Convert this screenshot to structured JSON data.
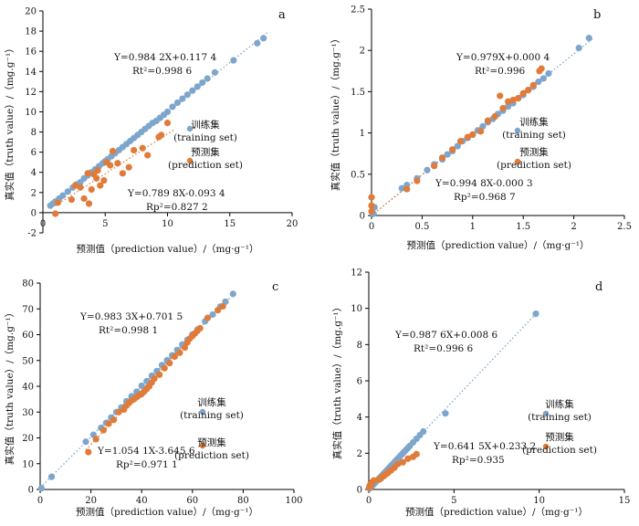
{
  "colors": {
    "training": "#7ea6cc",
    "prediction": "#e07b39",
    "axis": "#000000"
  },
  "chart_data": [
    {
      "panel": "a",
      "type": "scatter",
      "xlabel": "预测值（prediction value）/（mg·g⁻¹）",
      "ylabel": "真实值（truth value）/（mg.g⁻¹）",
      "xlim": [
        0,
        20
      ],
      "ylim": [
        -2,
        20
      ],
      "xticks": [
        0,
        5,
        10,
        15,
        20
      ],
      "yticks": [
        -2,
        0,
        2,
        4,
        6,
        8,
        10,
        12,
        14,
        16,
        18,
        20
      ],
      "eq_train_1": "Y=0.984 2X+0.117 4",
      "eq_train_2": "Rt²=0.998 6",
      "eq_pred_1": "Y=0.789 8X-0.093 4",
      "eq_pred_2": "Rp²=0.827 2",
      "legend_train_1": "训练集",
      "legend_train_2": "(training set)",
      "legend_pred_1": "预测集",
      "legend_pred_2": "(prediction set)",
      "fit_train": {
        "slope": 0.9842,
        "intercept": 0.1174,
        "x_range": [
          0.5,
          18
        ]
      },
      "fit_pred": {
        "slope": 0.7898,
        "intercept": -0.0934,
        "x_range": [
          1,
          10.5
        ]
      },
      "series": [
        {
          "name": "训练集 (training set)",
          "x": [
            0.6,
            0.8,
            1.0,
            1.3,
            1.6,
            2.0,
            2.4,
            2.7,
            3.0,
            3.3,
            3.6,
            3.9,
            4.2,
            4.5,
            4.8,
            5.0,
            5.2,
            5.5,
            5.8,
            6.1,
            6.4,
            6.7,
            7.0,
            7.3,
            7.6,
            7.9,
            8.2,
            8.5,
            8.8,
            9.1,
            9.4,
            9.7,
            10.0,
            10.4,
            10.8,
            11.2,
            11.6,
            12.0,
            12.4,
            12.8,
            13.2,
            13.8,
            15.3,
            17.2,
            17.7
          ],
          "y": [
            0.7,
            0.9,
            1.1,
            1.4,
            1.7,
            2.1,
            2.5,
            2.8,
            3.0,
            3.4,
            3.7,
            4.0,
            4.3,
            4.6,
            4.9,
            5.1,
            5.3,
            5.6,
            5.9,
            6.2,
            6.5,
            6.8,
            7.1,
            7.4,
            7.7,
            8.0,
            8.3,
            8.6,
            8.9,
            9.1,
            9.4,
            9.7,
            10.0,
            10.5,
            10.9,
            11.3,
            11.7,
            12.1,
            12.5,
            12.9,
            13.3,
            13.9,
            15.1,
            16.8,
            17.3
          ]
        },
        {
          "name": "预测集 (prediction set)",
          "x": [
            1.0,
            1.2,
            2.3,
            2.6,
            3.0,
            3.3,
            3.6,
            3.7,
            3.9,
            4.1,
            4.3,
            4.4,
            4.6,
            4.9,
            5.1,
            5.4,
            5.6,
            6.0,
            6.4,
            6.9,
            7.3,
            8.0,
            8.4,
            9.3,
            9.5,
            10.0
          ],
          "y": [
            -0.1,
            1.0,
            1.3,
            2.7,
            2.5,
            1.4,
            3.9,
            0.9,
            2.3,
            3.8,
            3.4,
            4.2,
            2.7,
            3.2,
            5.0,
            4.7,
            6.1,
            4.9,
            3.9,
            4.5,
            6.2,
            6.4,
            5.7,
            7.5,
            7.7,
            8.9
          ]
        }
      ]
    },
    {
      "panel": "b",
      "type": "scatter",
      "xlabel": "预测值（prediction value）/（mg·g⁻¹）",
      "ylabel": "真实值（truth value）/（mg.g⁻¹）",
      "xlim": [
        0,
        2.5
      ],
      "ylim": [
        0,
        2.5
      ],
      "xticks": [
        0,
        0.5,
        1,
        1.5,
        2,
        2.5
      ],
      "yticks": [
        0,
        0.5,
        1,
        1.5,
        2,
        2.5
      ],
      "eq_train_1": "Y=0.979X+0.000 4",
      "eq_train_2": "Rt²=0.996",
      "eq_pred_1": "Y=0.994 8X-0.000 3",
      "eq_pred_2": "Rp²=0.968 7",
      "legend_train_1": "训练集",
      "legend_train_2": "(training set)",
      "legend_pred_1": "预测集",
      "legend_pred_2": "(prediction set)",
      "fit_train": {
        "slope": 0.979,
        "intercept": 0.0004,
        "x_range": [
          0,
          2.2
        ]
      },
      "fit_pred": {
        "slope": 0.9948,
        "intercept": -0.0003,
        "x_range": [
          0,
          1.7
        ]
      },
      "series": [
        {
          "name": "训练集 (training set)",
          "x": [
            0.02,
            0.03,
            0.3,
            0.35,
            0.45,
            0.55,
            0.62,
            0.7,
            0.75,
            0.8,
            0.85,
            0.9,
            0.95,
            1.0,
            1.05,
            1.1,
            1.15,
            1.2,
            1.25,
            1.3,
            1.35,
            1.4,
            1.45,
            1.5,
            1.55,
            1.6,
            1.65,
            1.7,
            1.75,
            2.05,
            2.15
          ],
          "y": [
            0.02,
            0.1,
            0.33,
            0.37,
            0.45,
            0.55,
            0.62,
            0.68,
            0.74,
            0.78,
            0.84,
            0.9,
            0.94,
            0.98,
            1.03,
            1.08,
            1.13,
            1.17,
            1.23,
            1.27,
            1.32,
            1.36,
            1.42,
            1.46,
            1.52,
            1.56,
            1.62,
            1.66,
            1.72,
            2.03,
            2.15
          ]
        },
        {
          "name": "预测集 (prediction set)",
          "x": [
            0.0,
            0.0,
            0.0,
            0.35,
            0.45,
            0.62,
            0.7,
            0.8,
            0.88,
            0.95,
            1.0,
            1.08,
            1.15,
            1.22,
            1.27,
            1.3,
            1.35,
            1.4,
            1.45,
            1.5,
            1.55,
            1.6,
            1.66,
            1.68
          ],
          "y": [
            0.05,
            0.12,
            0.22,
            0.32,
            0.42,
            0.6,
            0.7,
            0.8,
            0.9,
            0.95,
            0.98,
            1.02,
            1.15,
            1.2,
            1.45,
            1.3,
            1.38,
            1.4,
            1.42,
            1.48,
            1.52,
            1.58,
            1.75,
            1.78
          ]
        }
      ]
    },
    {
      "panel": "c",
      "type": "scatter",
      "xlabel": "预测值（prediction value）/（mg·g⁻¹）",
      "ylabel": "真实值（truth value）/（mg.g⁻¹）",
      "xlim": [
        0,
        100
      ],
      "ylim": [
        0,
        80
      ],
      "xticks": [
        0,
        20,
        40,
        60,
        80,
        100
      ],
      "yticks": [
        0,
        10,
        20,
        30,
        40,
        50,
        60,
        70,
        80
      ],
      "eq_train_1": "Y=0.983 3X+0.701 5",
      "eq_train_2": "Rt²=0.998 1",
      "eq_pred_1": "Y=1.054 1X-3.645 6",
      "eq_pred_2": "Rp²=0.971 1",
      "legend_train_1": "训练集",
      "legend_train_2": "(training set)",
      "legend_pred_1": "预测集",
      "legend_pred_2": "(prediction set)",
      "fit_train": {
        "slope": 0.9833,
        "intercept": 0.7015,
        "x_range": [
          0,
          77
        ]
      },
      "fit_pred": {
        "slope": 1.0541,
        "intercept": -3.6456,
        "x_range": [
          18,
          74
        ]
      },
      "series": [
        {
          "name": "训练集 (training set)",
          "x": [
            0.5,
            4.5,
            18,
            21,
            24,
            26,
            28,
            30,
            32,
            34,
            36,
            38,
            40,
            42,
            44,
            46,
            48,
            50,
            52,
            54,
            56,
            58,
            60,
            62,
            65,
            68,
            71,
            73,
            76
          ],
          "y": [
            0.5,
            4.9,
            18.5,
            21.2,
            23.9,
            25.8,
            27.9,
            30.0,
            31.8,
            34.2,
            36.1,
            37.9,
            40.2,
            42.0,
            44.1,
            45.9,
            48.2,
            50.1,
            52.0,
            54.1,
            56.2,
            58.0,
            60.1,
            62.0,
            65.2,
            67.8,
            70.9,
            72.8,
            75.8
          ]
        },
        {
          "name": "预测集 (prediction set)",
          "x": [
            19,
            22,
            25,
            27,
            29,
            31,
            33,
            34,
            35,
            36,
            37,
            38,
            39,
            40,
            41,
            42,
            43,
            44,
            45,
            47,
            49,
            51,
            53,
            55,
            57,
            58,
            59,
            60,
            61,
            62,
            63,
            66,
            70,
            72
          ],
          "y": [
            14.5,
            19.5,
            23.0,
            25.5,
            27.0,
            30.0,
            31.0,
            32.5,
            33.5,
            34.5,
            35.0,
            35.8,
            36.5,
            37.0,
            38.0,
            39.0,
            40.0,
            41.5,
            43.0,
            44.5,
            47.0,
            49.0,
            51.5,
            53.0,
            55.0,
            57.0,
            58.5,
            59.5,
            60.5,
            61.5,
            62.5,
            66.5,
            69.5,
            71.0
          ]
        }
      ]
    },
    {
      "panel": "d",
      "type": "scatter",
      "xlabel": "预测值（prediction value）/（mg·g⁻¹）",
      "ylabel": "真实值（truth value）/（mg.g⁻¹）",
      "xlim": [
        0,
        15
      ],
      "ylim": [
        0,
        12
      ],
      "xticks": [
        0,
        5,
        10,
        15
      ],
      "yticks": [
        0,
        2,
        4,
        6,
        8,
        10,
        12
      ],
      "eq_train_1": "Y=0.987 6X+0.008 6",
      "eq_train_2": "Rt²=0.996 6",
      "eq_pred_1": "Y=0.641 5X+0.233 2",
      "eq_pred_2": "Rp²=0.935",
      "legend_train_1": "训练集",
      "legend_train_2": "(training set)",
      "legend_pred_1": "预测集",
      "legend_pred_2": "(prediction set)",
      "fit_train": {
        "slope": 0.9876,
        "intercept": 0.0086,
        "x_range": [
          0,
          10
        ]
      },
      "fit_pred": {
        "slope": 0.6415,
        "intercept": 0.2332,
        "x_range": [
          0,
          3
        ]
      },
      "series": [
        {
          "name": "训练集 (training set)",
          "x": [
            0.05,
            0.1,
            0.2,
            0.3,
            0.4,
            0.5,
            0.6,
            0.7,
            0.8,
            0.9,
            1.0,
            1.1,
            1.2,
            1.3,
            1.4,
            1.5,
            1.6,
            1.7,
            1.8,
            1.9,
            2.0,
            2.1,
            2.2,
            2.3,
            2.4,
            2.6,
            2.8,
            3.0,
            3.2,
            4.5,
            9.8
          ],
          "y": [
            0.05,
            0.12,
            0.2,
            0.3,
            0.4,
            0.5,
            0.6,
            0.7,
            0.8,
            0.9,
            1.0,
            1.1,
            1.2,
            1.3,
            1.4,
            1.5,
            1.6,
            1.7,
            1.8,
            1.9,
            2.0,
            2.1,
            2.2,
            2.3,
            2.4,
            2.6,
            2.8,
            3.0,
            3.2,
            4.2,
            9.7
          ]
        },
        {
          "name": "预测集 (prediction set)",
          "x": [
            0.02,
            0.05,
            0.1,
            0.15,
            0.2,
            0.25,
            0.3,
            0.6,
            0.7,
            0.8,
            0.9,
            1.0,
            1.1,
            1.2,
            1.3,
            1.5,
            1.7,
            2.0,
            2.3,
            2.6,
            2.8
          ],
          "y": [
            0.1,
            0.2,
            0.3,
            0.25,
            0.4,
            0.45,
            0.5,
            0.55,
            0.6,
            0.7,
            0.75,
            0.85,
            0.9,
            1.0,
            1.05,
            1.2,
            1.4,
            1.5,
            1.7,
            1.8,
            1.95
          ]
        }
      ]
    }
  ]
}
